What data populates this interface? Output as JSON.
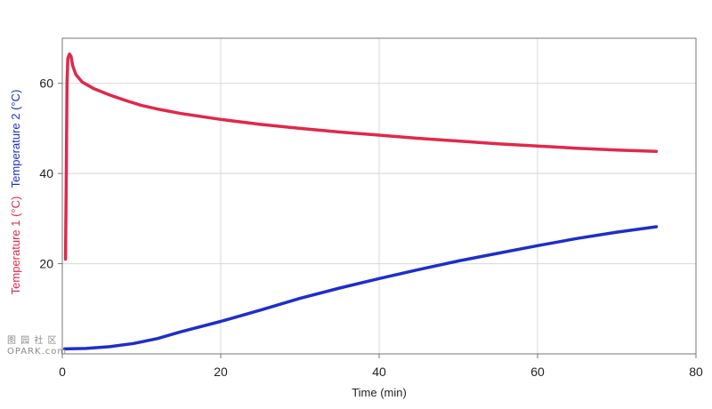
{
  "chart_data": {
    "type": "line",
    "xlabel": "Time (min)",
    "xlim": [
      0,
      80
    ],
    "ylim": [
      0,
      70
    ],
    "x_ticks": [
      0,
      20,
      40,
      60,
      80
    ],
    "y_ticks": [
      20,
      40,
      60
    ],
    "grid": true,
    "colors": {
      "series1": "#e0284a",
      "series2": "#1f2ec8",
      "grid": "#d8d8d8",
      "frame": "#777777"
    },
    "series": [
      {
        "name": "Temperature 1 (°C)",
        "color": "#e0284a",
        "points": [
          [
            0.4,
            21
          ],
          [
            0.5,
            40
          ],
          [
            0.6,
            60
          ],
          [
            0.7,
            65.5
          ],
          [
            0.9,
            66.5
          ],
          [
            1.1,
            66
          ],
          [
            1.3,
            64
          ],
          [
            1.7,
            62
          ],
          [
            2.5,
            60.3
          ],
          [
            4,
            58.8
          ],
          [
            6,
            57.4
          ],
          [
            8,
            56.2
          ],
          [
            10,
            55.1
          ],
          [
            12,
            54.3
          ],
          [
            15,
            53.3
          ],
          [
            20,
            52
          ],
          [
            25,
            50.9
          ],
          [
            30,
            50
          ],
          [
            35,
            49.2
          ],
          [
            40,
            48.5
          ],
          [
            45,
            47.8
          ],
          [
            50,
            47.2
          ],
          [
            55,
            46.6
          ],
          [
            60,
            46.1
          ],
          [
            65,
            45.6
          ],
          [
            70,
            45.2
          ],
          [
            75,
            44.9
          ]
        ]
      },
      {
        "name": "Temperature 2 (°C)",
        "color": "#1f2ec8",
        "points": [
          [
            0.3,
            1.1
          ],
          [
            3,
            1.2
          ],
          [
            6,
            1.6
          ],
          [
            9,
            2.3
          ],
          [
            12,
            3.4
          ],
          [
            15,
            4.9
          ],
          [
            20,
            7.2
          ],
          [
            25,
            9.7
          ],
          [
            30,
            12.3
          ],
          [
            35,
            14.6
          ],
          [
            40,
            16.7
          ],
          [
            45,
            18.7
          ],
          [
            50,
            20.6
          ],
          [
            55,
            22.3
          ],
          [
            60,
            24
          ],
          [
            65,
            25.6
          ],
          [
            70,
            27
          ],
          [
            75,
            28.2
          ]
        ]
      }
    ]
  },
  "watermark": {
    "line1": "图 园 社 区",
    "line2": "OPARK.com"
  }
}
